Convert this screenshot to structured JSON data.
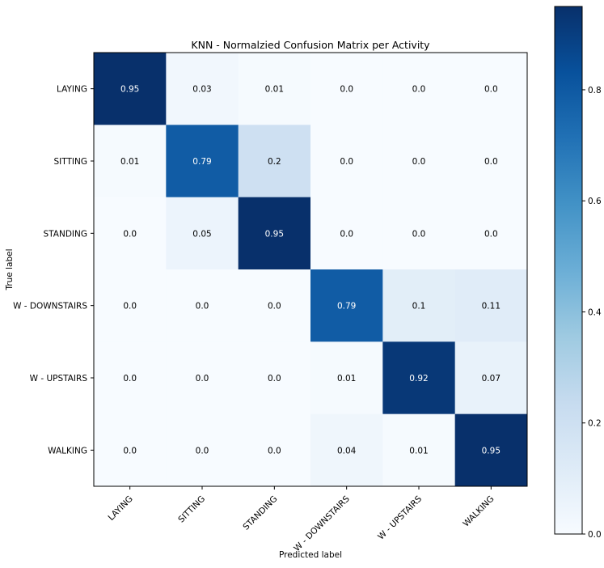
{
  "chart_data": {
    "type": "heatmap",
    "title": "KNN - Normalzied Confusion Matrix per Activity",
    "xlabel": "Predicted label",
    "ylabel": "True label",
    "x_categories": [
      "LAYING",
      "SITTING",
      "STANDING",
      "W - DOWNSTAIRS",
      "W - UPSTAIRS",
      "WALKING"
    ],
    "y_categories": [
      "LAYING",
      "SITTING",
      "STANDING",
      "W - DOWNSTAIRS",
      "W - UPSTAIRS",
      "WALKING"
    ],
    "values": [
      [
        0.95,
        0.03,
        0.01,
        0.0,
        0.0,
        0.0
      ],
      [
        0.01,
        0.79,
        0.2,
        0.0,
        0.0,
        0.0
      ],
      [
        0.0,
        0.05,
        0.95,
        0.0,
        0.0,
        0.0
      ],
      [
        0.0,
        0.0,
        0.0,
        0.79,
        0.1,
        0.11
      ],
      [
        0.0,
        0.0,
        0.0,
        0.01,
        0.92,
        0.07
      ],
      [
        0.0,
        0.0,
        0.0,
        0.04,
        0.01,
        0.95
      ]
    ],
    "cell_labels": [
      [
        "0.95",
        "0.03",
        "0.01",
        "0.0",
        "0.0",
        "0.0"
      ],
      [
        "0.01",
        "0.79",
        "0.2",
        "0.0",
        "0.0",
        "0.0"
      ],
      [
        "0.0",
        "0.05",
        "0.95",
        "0.0",
        "0.0",
        "0.0"
      ],
      [
        "0.0",
        "0.0",
        "0.0",
        "0.79",
        "0.1",
        "0.11"
      ],
      [
        "0.0",
        "0.0",
        "0.0",
        "0.01",
        "0.92",
        "0.07"
      ],
      [
        "0.0",
        "0.0",
        "0.0",
        "0.04",
        "0.01",
        "0.95"
      ]
    ],
    "colormap": "Blues",
    "color_range": [
      0.0,
      0.95
    ],
    "colorbar": {
      "ticks": [
        0.0,
        0.2,
        0.4,
        0.6,
        0.8
      ],
      "tick_labels": [
        "0.0",
        "0.2",
        "0.4",
        "0.6",
        "0.8"
      ]
    },
    "grid": false,
    "legend": "colorbar-right"
  }
}
